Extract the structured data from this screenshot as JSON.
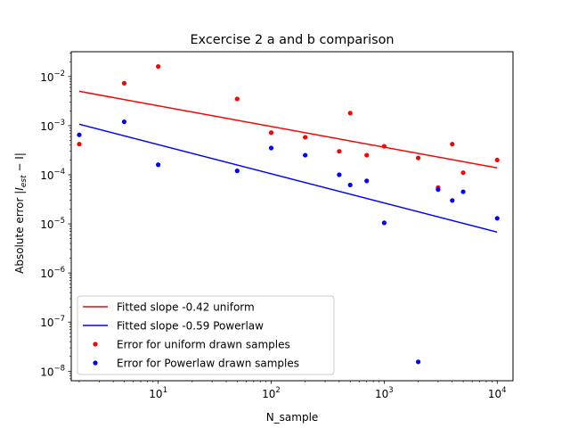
{
  "chart_data": {
    "type": "scatter",
    "title": "Excercise 2 a and b comparison",
    "xlabel": "N_sample",
    "ylabel": "Absolute error |I_est − I|",
    "ylabel_parts": {
      "pre": "Absolute error |",
      "main": "I",
      "sub": "est",
      "post": " − I|"
    },
    "xscale": "log",
    "yscale": "log",
    "xlim": [
      1.7,
      13800
    ],
    "ylim": [
      6.4e-09,
      0.032
    ],
    "grid": false,
    "legend_position": "lower-left",
    "x_ticks": [
      {
        "value": 10,
        "base": "10",
        "exp": "1"
      },
      {
        "value": 100,
        "base": "10",
        "exp": "2"
      },
      {
        "value": 1000,
        "base": "10",
        "exp": "3"
      },
      {
        "value": 10000,
        "base": "10",
        "exp": "4"
      }
    ],
    "y_ticks": [
      {
        "value": 1e-08,
        "base": "10",
        "exp": "−8"
      },
      {
        "value": 1e-07,
        "base": "10",
        "exp": "−7"
      },
      {
        "value": 1e-06,
        "base": "10",
        "exp": "−6"
      },
      {
        "value": 1e-05,
        "base": "10",
        "exp": "−5"
      },
      {
        "value": 0.0001,
        "base": "10",
        "exp": "−4"
      },
      {
        "value": 0.001,
        "base": "10",
        "exp": "−3"
      },
      {
        "value": 0.01,
        "base": "10",
        "exp": "−2"
      }
    ],
    "series": [
      {
        "name": "Fitted slope -0.42 uniform",
        "kind": "line",
        "color": "#ff0000",
        "x": [
          2,
          10000
        ],
        "y": [
          0.005,
          0.000138
        ]
      },
      {
        "name": "Fitted slope -0.59 Powerlaw",
        "kind": "line",
        "color": "#0000ff",
        "x": [
          2,
          10000
        ],
        "y": [
          0.00107,
          6.8e-06
        ]
      },
      {
        "name": "Error for uniform drawn samples",
        "kind": "scatter",
        "color": "#ff0000",
        "x": [
          2,
          5,
          10,
          50,
          100,
          200,
          400,
          500,
          700,
          1000,
          2000,
          3000,
          4000,
          5000,
          10000
        ],
        "y": [
          0.00042,
          0.0073,
          0.016,
          0.0035,
          0.00072,
          0.00058,
          0.0003,
          0.0018,
          0.00025,
          0.00038,
          0.00022,
          5.5e-05,
          0.00042,
          0.00011,
          0.0002
        ]
      },
      {
        "name": "Error for Powerlaw drawn samples",
        "kind": "scatter",
        "color": "#0000ff",
        "x": [
          2,
          5,
          10,
          50,
          100,
          200,
          400,
          500,
          700,
          1000,
          2000,
          3000,
          4000,
          5000,
          10000
        ],
        "y": [
          0.00065,
          0.0012,
          0.00016,
          0.00012,
          0.00035,
          0.00025,
          0.0001,
          6.2e-05,
          7.5e-05,
          1.05e-05,
          1.55e-08,
          5e-05,
          3e-05,
          4.5e-05,
          1.3e-05
        ]
      }
    ]
  }
}
